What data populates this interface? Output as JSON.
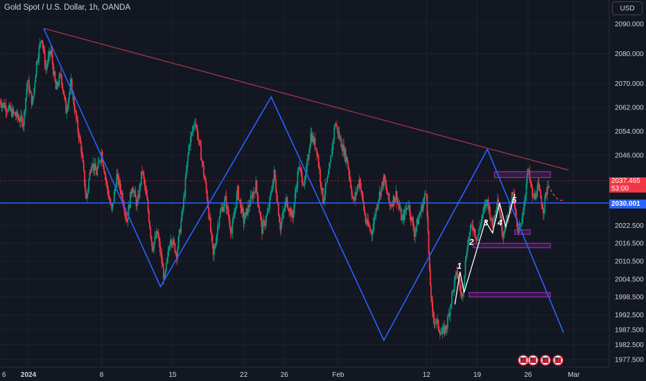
{
  "header": {
    "title": "Gold Spot / U.S. Dollar, 1h, OANDA",
    "currency_button": "USD"
  },
  "price_labels": {
    "current_price": "2037.465",
    "countdown": "53:00",
    "horizontal_level": "2030.001"
  },
  "colors": {
    "background": "#131722",
    "grid": "#1e222d",
    "candle_up": "#089981",
    "candle_down": "#f23645",
    "zigzag": "#2962ff",
    "trendline": "#b2394a",
    "zone": "#9c27b0",
    "axis_text": "#d1d4dc"
  },
  "chart_data": {
    "type": "line",
    "symbol": "Gold Spot / U.S. Dollar",
    "interval": "1h",
    "source": "OANDA",
    "x_tick_labels": [
      "6",
      "2024",
      "8",
      "15",
      "22",
      "26",
      "Feb",
      "12",
      "19",
      "26",
      "Mar"
    ],
    "y_tick_labels": [
      "2090.000",
      "2080.000",
      "2070.000",
      "2062.000",
      "2054.000",
      "2046.000",
      "2022.500",
      "2016.500",
      "2010.500",
      "2004.500",
      "1998.500",
      "1992.500",
      "1987.500",
      "1982.500",
      "1977.500"
    ],
    "y_range": [
      1975,
      2098
    ],
    "x_range_days": [
      -2,
      58
    ],
    "zigzag_line": [
      [
        2.3,
        2088.5
      ],
      [
        13.8,
        2002.0
      ],
      [
        24.7,
        2065.5
      ],
      [
        35.8,
        1984.0
      ],
      [
        46.0,
        2048.0
      ],
      [
        53.5,
        1986.5
      ]
    ],
    "trendline": [
      [
        2.3,
        2088.5
      ],
      [
        54.0,
        2041.0
      ]
    ],
    "horizontal_level": 2030.001,
    "current_price": 2037.465,
    "elliott_wave_labels": [
      "1",
      "2",
      "3",
      "4",
      "5"
    ],
    "price_path": [
      [
        -2,
        2064
      ],
      [
        0.3,
        2057
      ],
      [
        0.7,
        2071
      ],
      [
        1.2,
        2063
      ],
      [
        1.6,
        2077
      ],
      [
        2.1,
        2086
      ],
      [
        2.5,
        2075
      ],
      [
        3.0,
        2081
      ],
      [
        3.5,
        2068
      ],
      [
        4.0,
        2073
      ],
      [
        4.5,
        2061
      ],
      [
        5.0,
        2070
      ],
      [
        5.5,
        2058
      ],
      [
        6.0,
        2048
      ],
      [
        6.5,
        2031
      ],
      [
        7.0,
        2044
      ],
      [
        7.5,
        2040
      ],
      [
        8.0,
        2047
      ],
      [
        8.5,
        2036
      ],
      [
        9.0,
        2027
      ],
      [
        9.5,
        2039
      ],
      [
        10.0,
        2033
      ],
      [
        10.5,
        2024
      ],
      [
        11.0,
        2036
      ],
      [
        11.5,
        2029
      ],
      [
        12.0,
        2041
      ],
      [
        12.5,
        2030
      ],
      [
        13.0,
        2015
      ],
      [
        13.5,
        2020
      ],
      [
        14.2,
        2004
      ],
      [
        14.8,
        2019
      ],
      [
        15.4,
        2013
      ],
      [
        16.0,
        2028
      ],
      [
        16.6,
        2049
      ],
      [
        17.2,
        2058
      ],
      [
        17.8,
        2046
      ],
      [
        18.4,
        2032
      ],
      [
        19.0,
        2012
      ],
      [
        19.6,
        2026
      ],
      [
        20.2,
        2031
      ],
      [
        20.8,
        2020
      ],
      [
        21.4,
        2034
      ],
      [
        22.0,
        2024
      ],
      [
        22.6,
        2030
      ],
      [
        23.2,
        2036
      ],
      [
        23.8,
        2021
      ],
      [
        24.4,
        2027
      ],
      [
        25.0,
        2040
      ],
      [
        25.6,
        2022
      ],
      [
        26.2,
        2031
      ],
      [
        26.8,
        2025
      ],
      [
        27.4,
        2042
      ],
      [
        28.0,
        2036
      ],
      [
        28.6,
        2053
      ],
      [
        29.2,
        2048
      ],
      [
        29.8,
        2031
      ],
      [
        30.4,
        2040
      ],
      [
        31.0,
        2057
      ],
      [
        31.6,
        2050
      ],
      [
        32.2,
        2044
      ],
      [
        32.8,
        2030
      ],
      [
        33.4,
        2038
      ],
      [
        34.0,
        2024
      ],
      [
        34.6,
        2020
      ],
      [
        35.2,
        2031
      ],
      [
        35.8,
        2038
      ],
      [
        36.4,
        2029
      ],
      [
        37.0,
        2033
      ],
      [
        37.6,
        2024
      ],
      [
        38.2,
        2030
      ],
      [
        38.8,
        2020
      ],
      [
        39.4,
        2027
      ],
      [
        40.0,
        2034
      ],
      [
        40.3,
        2006
      ],
      [
        40.6,
        1992
      ],
      [
        41.0,
        1990
      ],
      [
        41.5,
        1986
      ],
      [
        42.0,
        1989
      ],
      [
        42.5,
        1999
      ],
      [
        43.0,
        2007
      ],
      [
        43.5,
        1998
      ],
      [
        44.0,
        2016
      ],
      [
        44.5,
        2023
      ],
      [
        45.0,
        2018
      ],
      [
        45.5,
        2026
      ],
      [
        46.0,
        2031
      ],
      [
        46.5,
        2022
      ],
      [
        47.0,
        2032
      ],
      [
        47.5,
        2020
      ],
      [
        48.0,
        2025
      ],
      [
        48.5,
        2034
      ],
      [
        49.0,
        2019
      ],
      [
        49.5,
        2027
      ],
      [
        50.0,
        2041
      ],
      [
        50.5,
        2031
      ],
      [
        51.0,
        2035
      ],
      [
        51.5,
        2028
      ],
      [
        52.0,
        2037
      ]
    ],
    "grid": true
  }
}
